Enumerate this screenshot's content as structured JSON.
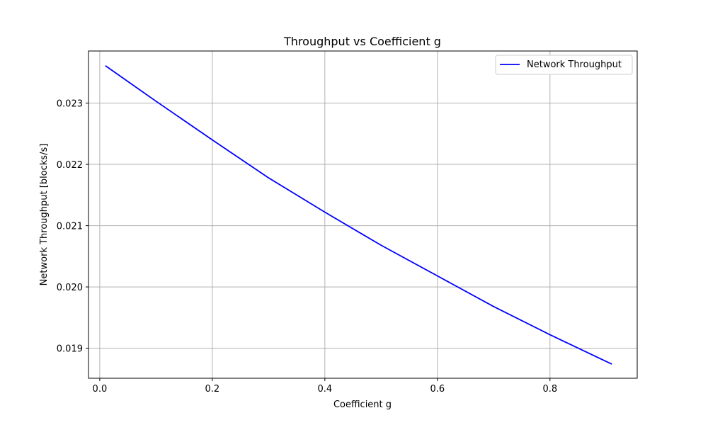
{
  "chart_data": {
    "type": "line",
    "title": "Throughput vs Coefficient g",
    "xlabel": "Coefficient g",
    "ylabel": "Network Throughput [blocks/s]",
    "xlim": [
      -0.02,
      0.955
    ],
    "ylim": [
      0.01851,
      0.02385
    ],
    "xticks": [
      0.0,
      0.2,
      0.4,
      0.6,
      0.8
    ],
    "xtick_labels": [
      "0.0",
      "0.2",
      "0.4",
      "0.6",
      "0.8"
    ],
    "yticks": [
      0.019,
      0.02,
      0.021,
      0.022,
      0.023
    ],
    "ytick_labels": [
      "0.019",
      "0.020",
      "0.021",
      "0.022",
      "0.023"
    ],
    "grid": true,
    "legend": {
      "position": "top-right",
      "entries": [
        "Network Throughput"
      ]
    },
    "series": [
      {
        "name": "Network Throughput",
        "color": "#0000ff",
        "x": [
          0.01,
          0.1,
          0.2,
          0.3,
          0.4,
          0.5,
          0.6,
          0.7,
          0.8,
          0.91
        ],
        "y": [
          0.02361,
          0.02303,
          0.0224,
          0.02178,
          0.02122,
          0.02068,
          0.02018,
          0.01968,
          0.01922,
          0.01874
        ]
      }
    ]
  }
}
